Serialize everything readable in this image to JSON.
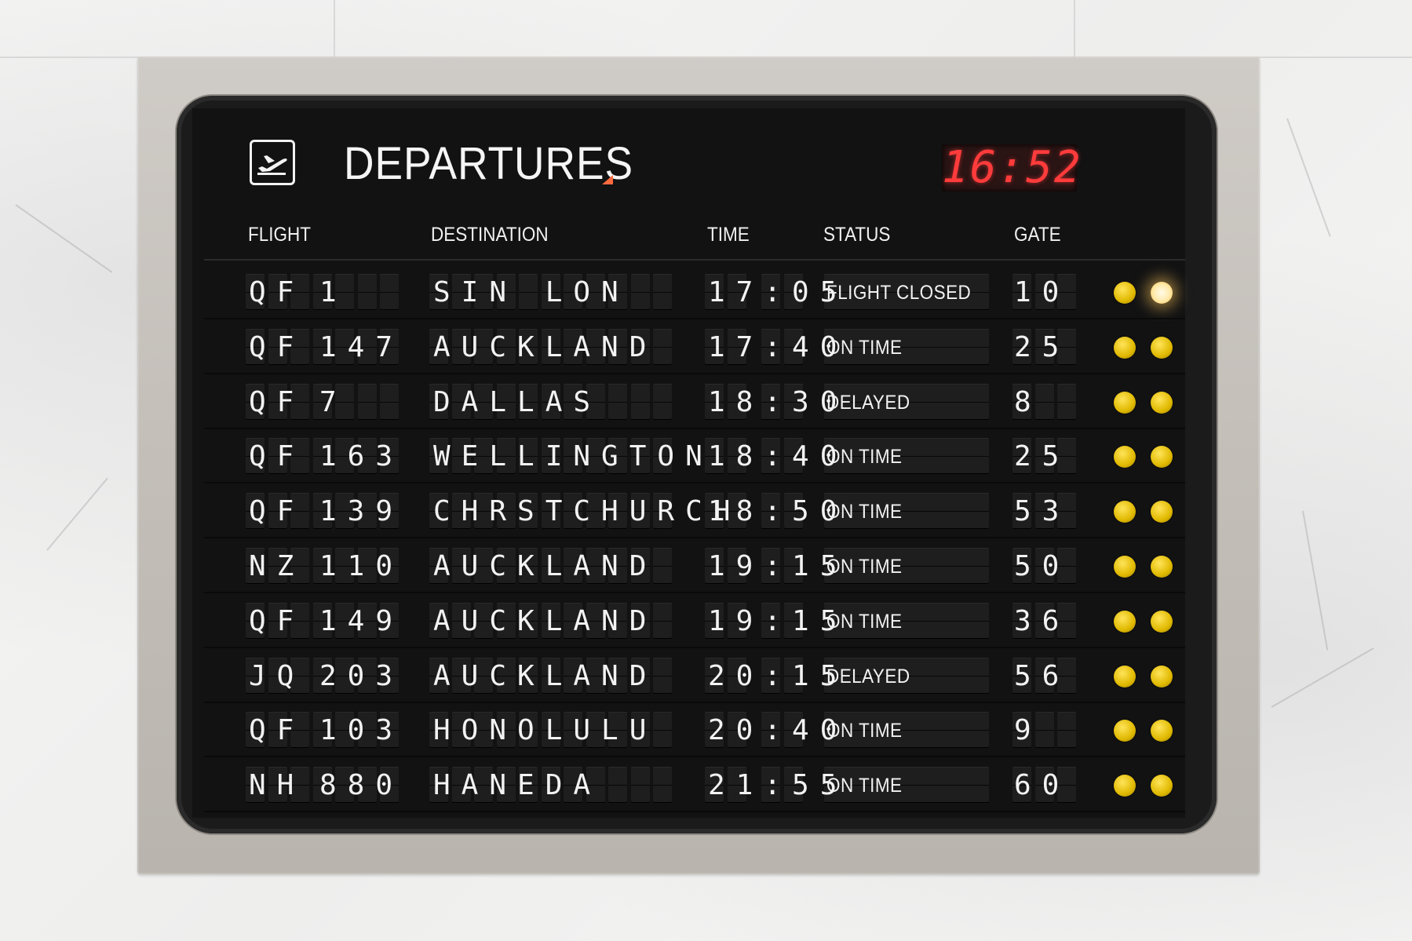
{
  "board": {
    "title": "DEPARTURES",
    "clock": "16:52",
    "icon": "airplane-departure-icon",
    "headers": {
      "flight": "FLIGHT",
      "destination": "DESTINATION",
      "time": "TIME",
      "status": "STATUS",
      "gate": "GATE"
    },
    "colors": {
      "clock": "#ff3b3b",
      "accent": "#ff6a3d",
      "indicator": "#f0c800"
    },
    "rows": [
      {
        "airline": "QF",
        "number": "1",
        "destination": "SIN LON",
        "time": "17:05",
        "status": "FLIGHT CLOSED",
        "gate": "10",
        "indicator_lit": true
      },
      {
        "airline": "QF",
        "number": "147",
        "destination": "AUCKLAND",
        "time": "17:40",
        "status": "ON TIME",
        "gate": "25",
        "indicator_lit": false
      },
      {
        "airline": "QF",
        "number": "7",
        "destination": "DALLAS",
        "time": "18:30",
        "status": "DELAYED",
        "gate": "8",
        "indicator_lit": false
      },
      {
        "airline": "QF",
        "number": "163",
        "destination": "WELLINGTON",
        "time": "18:40",
        "status": "ON TIME",
        "gate": "25",
        "indicator_lit": false
      },
      {
        "airline": "QF",
        "number": "139",
        "destination": "CHRSTCHURCH",
        "time": "18:50",
        "status": "ON TIME",
        "gate": "53",
        "indicator_lit": false
      },
      {
        "airline": "NZ",
        "number": "110",
        "destination": "AUCKLAND",
        "time": "19:15",
        "status": "ON TIME",
        "gate": "50",
        "indicator_lit": false
      },
      {
        "airline": "QF",
        "number": "149",
        "destination": "AUCKLAND",
        "time": "19:15",
        "status": "ON TIME",
        "gate": "36",
        "indicator_lit": false
      },
      {
        "airline": "JQ",
        "number": "203",
        "destination": "AUCKLAND",
        "time": "20:15",
        "status": "DELAYED",
        "gate": "56",
        "indicator_lit": false
      },
      {
        "airline": "QF",
        "number": "103",
        "destination": "HONOLULU",
        "time": "20:40",
        "status": "ON TIME",
        "gate": "9",
        "indicator_lit": false
      },
      {
        "airline": "NH",
        "number": "880",
        "destination": "HANEDA",
        "time": "21:55",
        "status": "ON TIME",
        "gate": "60",
        "indicator_lit": false
      }
    ]
  }
}
